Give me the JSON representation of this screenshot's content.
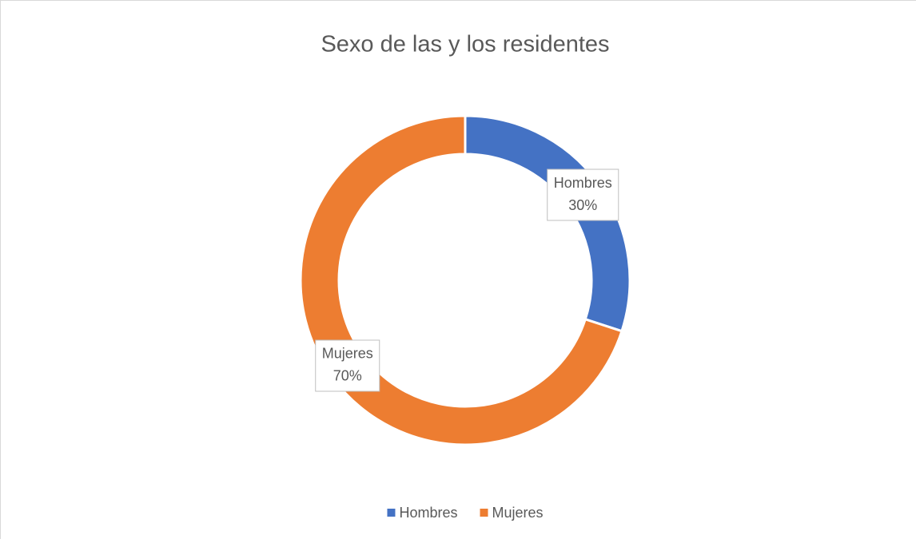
{
  "chart_data": {
    "type": "doughnut",
    "title": "Sexo de las y los residentes",
    "categories": [
      "Hombres",
      "Mujeres"
    ],
    "series": [
      {
        "values": [
          30,
          70
        ],
        "value_labels": [
          "30%",
          "70%"
        ],
        "colors": [
          "#4472c4",
          "#ed7d31"
        ]
      }
    ],
    "legend": "bottom"
  }
}
